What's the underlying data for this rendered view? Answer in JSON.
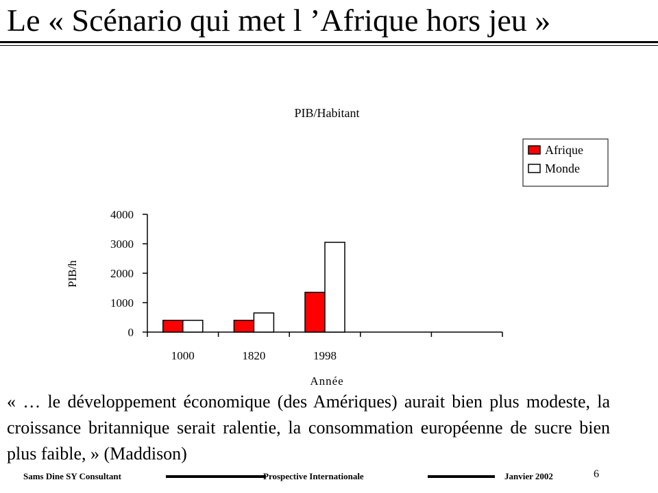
{
  "slide": {
    "title": "Le « Scénario qui met l ’Afrique hors jeu »",
    "quote": "« … le développement économique (des Amériques) aurait bien plus modeste, la croissance britannique serait ralentie, la consommation européenne de sucre bien plus faible,  » (Maddison)"
  },
  "chart_data": {
    "type": "bar",
    "title": "PIB/Habitant",
    "xlabel": "Année",
    "ylabel": "PIB/h",
    "categories": [
      "1000",
      "1820",
      "1998",
      "",
      ""
    ],
    "series": [
      {
        "name": "Afrique",
        "color": "#ff0000",
        "values": [
          400,
          400,
          1350,
          null,
          null
        ]
      },
      {
        "name": "Monde",
        "color": "#ffffff",
        "values": [
          400,
          650,
          3050,
          null,
          null
        ]
      }
    ],
    "yticks": [
      0,
      1000,
      2000,
      3000,
      4000
    ],
    "ylim": [
      0,
      4000
    ],
    "grid": false,
    "legend_position": "top-right"
  },
  "footer": {
    "author": "Sams Dine SY Consultant",
    "center": "Prospective Internationale",
    "date": "Janvier 2002",
    "page": "6"
  }
}
